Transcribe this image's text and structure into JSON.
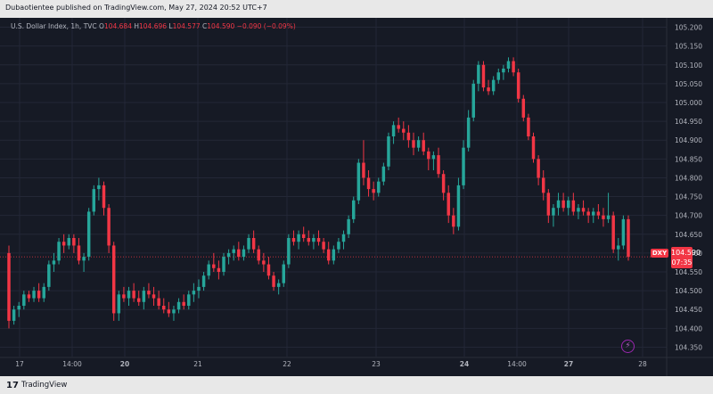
{
  "publisher": "Dubaotientee published on TradingView.com, May 27, 2024 20:52 UTC+7",
  "legend": {
    "symbol": "U.S. Dollar Index, 1h, TVC",
    "o_label": "O",
    "o_value": "104.684",
    "h_label": "H",
    "h_value": "104.696",
    "l_label": "L",
    "l_value": "104.577",
    "c_label": "C",
    "c_value": "104.590",
    "change": "−0.090 (−0.09%)"
  },
  "price_tag": {
    "ticker": "DXY",
    "price": "104.590",
    "countdown": "07:35"
  },
  "footer": {
    "logo": "17",
    "brand": "TradingView"
  },
  "colors": {
    "up": "#26a69a",
    "down": "#f23645",
    "bg": "#161a25",
    "grid": "#232736",
    "text": "#b2b5be"
  },
  "icons": {
    "bolt": "lightning-icon"
  },
  "chart_data": {
    "type": "candlestick",
    "title": "U.S. Dollar Index, 1h, TVC",
    "ylim": [
      104.325,
      105.225
    ],
    "y_ticks": [
      "105.200",
      "105.150",
      "105.100",
      "105.050",
      "105.000",
      "104.950",
      "104.900",
      "104.850",
      "104.800",
      "104.750",
      "104.700",
      "104.650",
      "104.600",
      "104.550",
      "104.500",
      "104.450",
      "104.400",
      "104.350"
    ],
    "x_ticks": [
      "17",
      "14:00",
      "20",
      "21",
      "22",
      "23",
      "24",
      "14:00",
      "27",
      "28"
    ],
    "last_price_line": 104.59,
    "grid": true,
    "candles": [
      [
        104.6,
        104.62,
        104.4,
        104.42
      ],
      [
        104.42,
        104.46,
        104.41,
        104.45
      ],
      [
        104.45,
        104.47,
        104.43,
        104.46
      ],
      [
        104.46,
        104.5,
        104.45,
        104.49
      ],
      [
        104.49,
        104.5,
        104.47,
        104.48
      ],
      [
        104.48,
        104.51,
        104.47,
        104.5
      ],
      [
        104.5,
        104.52,
        104.47,
        104.48
      ],
      [
        104.48,
        104.52,
        104.47,
        104.51
      ],
      [
        104.51,
        104.58,
        104.5,
        104.57
      ],
      [
        104.57,
        104.6,
        104.55,
        104.58
      ],
      [
        104.58,
        104.64,
        104.57,
        104.63
      ],
      [
        104.63,
        104.65,
        104.6,
        104.62
      ],
      [
        104.62,
        104.65,
        104.61,
        104.64
      ],
      [
        104.64,
        104.65,
        104.6,
        104.62
      ],
      [
        104.62,
        104.64,
        104.57,
        104.58
      ],
      [
        104.58,
        104.6,
        104.55,
        104.59
      ],
      [
        104.59,
        104.72,
        104.58,
        104.71
      ],
      [
        104.71,
        104.78,
        104.7,
        104.77
      ],
      [
        104.77,
        104.8,
        104.74,
        104.78
      ],
      [
        104.78,
        104.79,
        104.7,
        104.72
      ],
      [
        104.72,
        104.73,
        104.6,
        104.62
      ],
      [
        104.62,
        104.63,
        104.42,
        104.44
      ],
      [
        104.44,
        104.5,
        104.42,
        104.49
      ],
      [
        104.49,
        104.51,
        104.47,
        104.48
      ],
      [
        104.48,
        104.51,
        104.46,
        104.5
      ],
      [
        104.5,
        104.52,
        104.47,
        104.48
      ],
      [
        104.48,
        104.5,
        104.46,
        104.47
      ],
      [
        104.47,
        104.51,
        104.45,
        104.5
      ],
      [
        104.5,
        104.52,
        104.48,
        104.49
      ],
      [
        104.49,
        104.51,
        104.46,
        104.48
      ],
      [
        104.48,
        104.5,
        104.45,
        104.46
      ],
      [
        104.46,
        104.48,
        104.44,
        104.45
      ],
      [
        104.45,
        104.47,
        104.43,
        104.44
      ],
      [
        104.44,
        104.46,
        104.42,
        104.45
      ],
      [
        104.45,
        104.48,
        104.44,
        104.47
      ],
      [
        104.47,
        104.49,
        104.45,
        104.46
      ],
      [
        104.46,
        104.5,
        104.45,
        104.49
      ],
      [
        104.49,
        104.52,
        104.47,
        104.5
      ],
      [
        104.5,
        104.53,
        104.48,
        104.51
      ],
      [
        104.51,
        104.55,
        104.5,
        104.54
      ],
      [
        104.54,
        104.58,
        104.53,
        104.57
      ],
      [
        104.57,
        104.6,
        104.55,
        104.56
      ],
      [
        104.56,
        104.58,
        104.53,
        104.55
      ],
      [
        104.55,
        104.6,
        104.54,
        104.59
      ],
      [
        104.59,
        104.61,
        104.57,
        104.6
      ],
      [
        104.6,
        104.62,
        104.58,
        104.61
      ],
      [
        104.61,
        104.63,
        104.58,
        104.59
      ],
      [
        104.59,
        104.62,
        104.58,
        104.61
      ],
      [
        104.61,
        104.65,
        104.6,
        104.64
      ],
      [
        104.64,
        104.66,
        104.6,
        104.61
      ],
      [
        104.61,
        104.62,
        104.57,
        104.58
      ],
      [
        104.58,
        104.6,
        104.55,
        104.57
      ],
      [
        104.57,
        104.59,
        104.53,
        104.54
      ],
      [
        104.54,
        104.55,
        104.5,
        104.51
      ],
      [
        104.51,
        104.53,
        104.49,
        104.52
      ],
      [
        104.52,
        104.58,
        104.51,
        104.57
      ],
      [
        104.57,
        104.65,
        104.56,
        104.64
      ],
      [
        104.64,
        104.66,
        104.62,
        104.63
      ],
      [
        104.63,
        104.66,
        104.61,
        104.65
      ],
      [
        104.65,
        104.67,
        104.63,
        104.64
      ],
      [
        104.64,
        104.66,
        104.62,
        104.63
      ],
      [
        104.63,
        104.65,
        104.61,
        104.64
      ],
      [
        104.64,
        104.66,
        104.62,
        104.63
      ],
      [
        104.63,
        104.64,
        104.6,
        104.61
      ],
      [
        104.61,
        104.63,
        104.57,
        104.58
      ],
      [
        104.58,
        104.62,
        104.57,
        104.61
      ],
      [
        104.61,
        104.64,
        104.6,
        104.63
      ],
      [
        104.63,
        104.66,
        104.61,
        104.65
      ],
      [
        104.65,
        104.7,
        104.64,
        104.69
      ],
      [
        104.69,
        104.75,
        104.68,
        104.74
      ],
      [
        104.74,
        104.85,
        104.73,
        104.84
      ],
      [
        104.84,
        104.9,
        104.78,
        104.8
      ],
      [
        104.8,
        104.82,
        104.75,
        104.77
      ],
      [
        104.77,
        104.79,
        104.74,
        104.76
      ],
      [
        104.76,
        104.8,
        104.75,
        104.79
      ],
      [
        104.79,
        104.84,
        104.78,
        104.83
      ],
      [
        104.83,
        104.92,
        104.82,
        104.91
      ],
      [
        104.91,
        104.95,
        104.89,
        104.94
      ],
      [
        104.94,
        104.96,
        104.92,
        104.93
      ],
      [
        104.93,
        104.95,
        104.9,
        104.92
      ],
      [
        104.92,
        104.94,
        104.88,
        104.9
      ],
      [
        104.9,
        104.92,
        104.86,
        104.88
      ],
      [
        104.88,
        104.91,
        104.87,
        104.9
      ],
      [
        104.9,
        104.92,
        104.86,
        104.87
      ],
      [
        104.87,
        104.88,
        104.82,
        104.85
      ],
      [
        104.85,
        104.87,
        104.82,
        104.86
      ],
      [
        104.86,
        104.88,
        104.8,
        104.81
      ],
      [
        104.81,
        104.82,
        104.74,
        104.76
      ],
      [
        104.76,
        104.78,
        104.68,
        104.7
      ],
      [
        104.7,
        104.72,
        104.65,
        104.67
      ],
      [
        104.67,
        104.8,
        104.66,
        104.78
      ],
      [
        104.78,
        104.9,
        104.77,
        104.88
      ],
      [
        104.88,
        104.98,
        104.87,
        104.96
      ],
      [
        104.96,
        105.06,
        104.95,
        105.05
      ],
      [
        105.05,
        105.11,
        105.03,
        105.1
      ],
      [
        105.1,
        105.11,
        105.03,
        105.04
      ],
      [
        105.04,
        105.06,
        105.02,
        105.03
      ],
      [
        105.03,
        105.07,
        105.02,
        105.06
      ],
      [
        105.06,
        105.09,
        105.05,
        105.08
      ],
      [
        105.08,
        105.1,
        105.06,
        105.09
      ],
      [
        105.09,
        105.12,
        105.08,
        105.11
      ],
      [
        105.11,
        105.12,
        105.07,
        105.08
      ],
      [
        105.08,
        105.09,
        105.0,
        105.01
      ],
      [
        105.01,
        105.02,
        104.95,
        104.96
      ],
      [
        104.96,
        104.97,
        104.9,
        104.91
      ],
      [
        104.91,
        104.92,
        104.84,
        104.85
      ],
      [
        104.85,
        104.86,
        104.78,
        104.8
      ],
      [
        104.8,
        104.82,
        104.74,
        104.76
      ],
      [
        104.76,
        104.77,
        104.68,
        104.7
      ],
      [
        104.7,
        104.73,
        104.67,
        104.72
      ],
      [
        104.72,
        104.76,
        104.7,
        104.74
      ],
      [
        104.74,
        104.76,
        104.71,
        104.72
      ],
      [
        104.72,
        104.75,
        104.7,
        104.74
      ],
      [
        104.74,
        104.76,
        104.7,
        104.71
      ],
      [
        104.71,
        104.73,
        104.69,
        104.72
      ],
      [
        104.72,
        104.74,
        104.7,
        104.71
      ],
      [
        104.71,
        104.72,
        104.68,
        104.7
      ],
      [
        104.7,
        104.72,
        104.68,
        104.71
      ],
      [
        104.71,
        104.73,
        104.69,
        104.7
      ],
      [
        104.7,
        104.72,
        104.67,
        104.69
      ],
      [
        104.69,
        104.76,
        104.68,
        104.7
      ],
      [
        104.7,
        104.71,
        104.6,
        104.61
      ],
      [
        104.61,
        104.64,
        104.58,
        104.62
      ],
      [
        104.62,
        104.7,
        104.61,
        104.69
      ],
      [
        104.69,
        104.7,
        104.58,
        104.59
      ]
    ]
  }
}
